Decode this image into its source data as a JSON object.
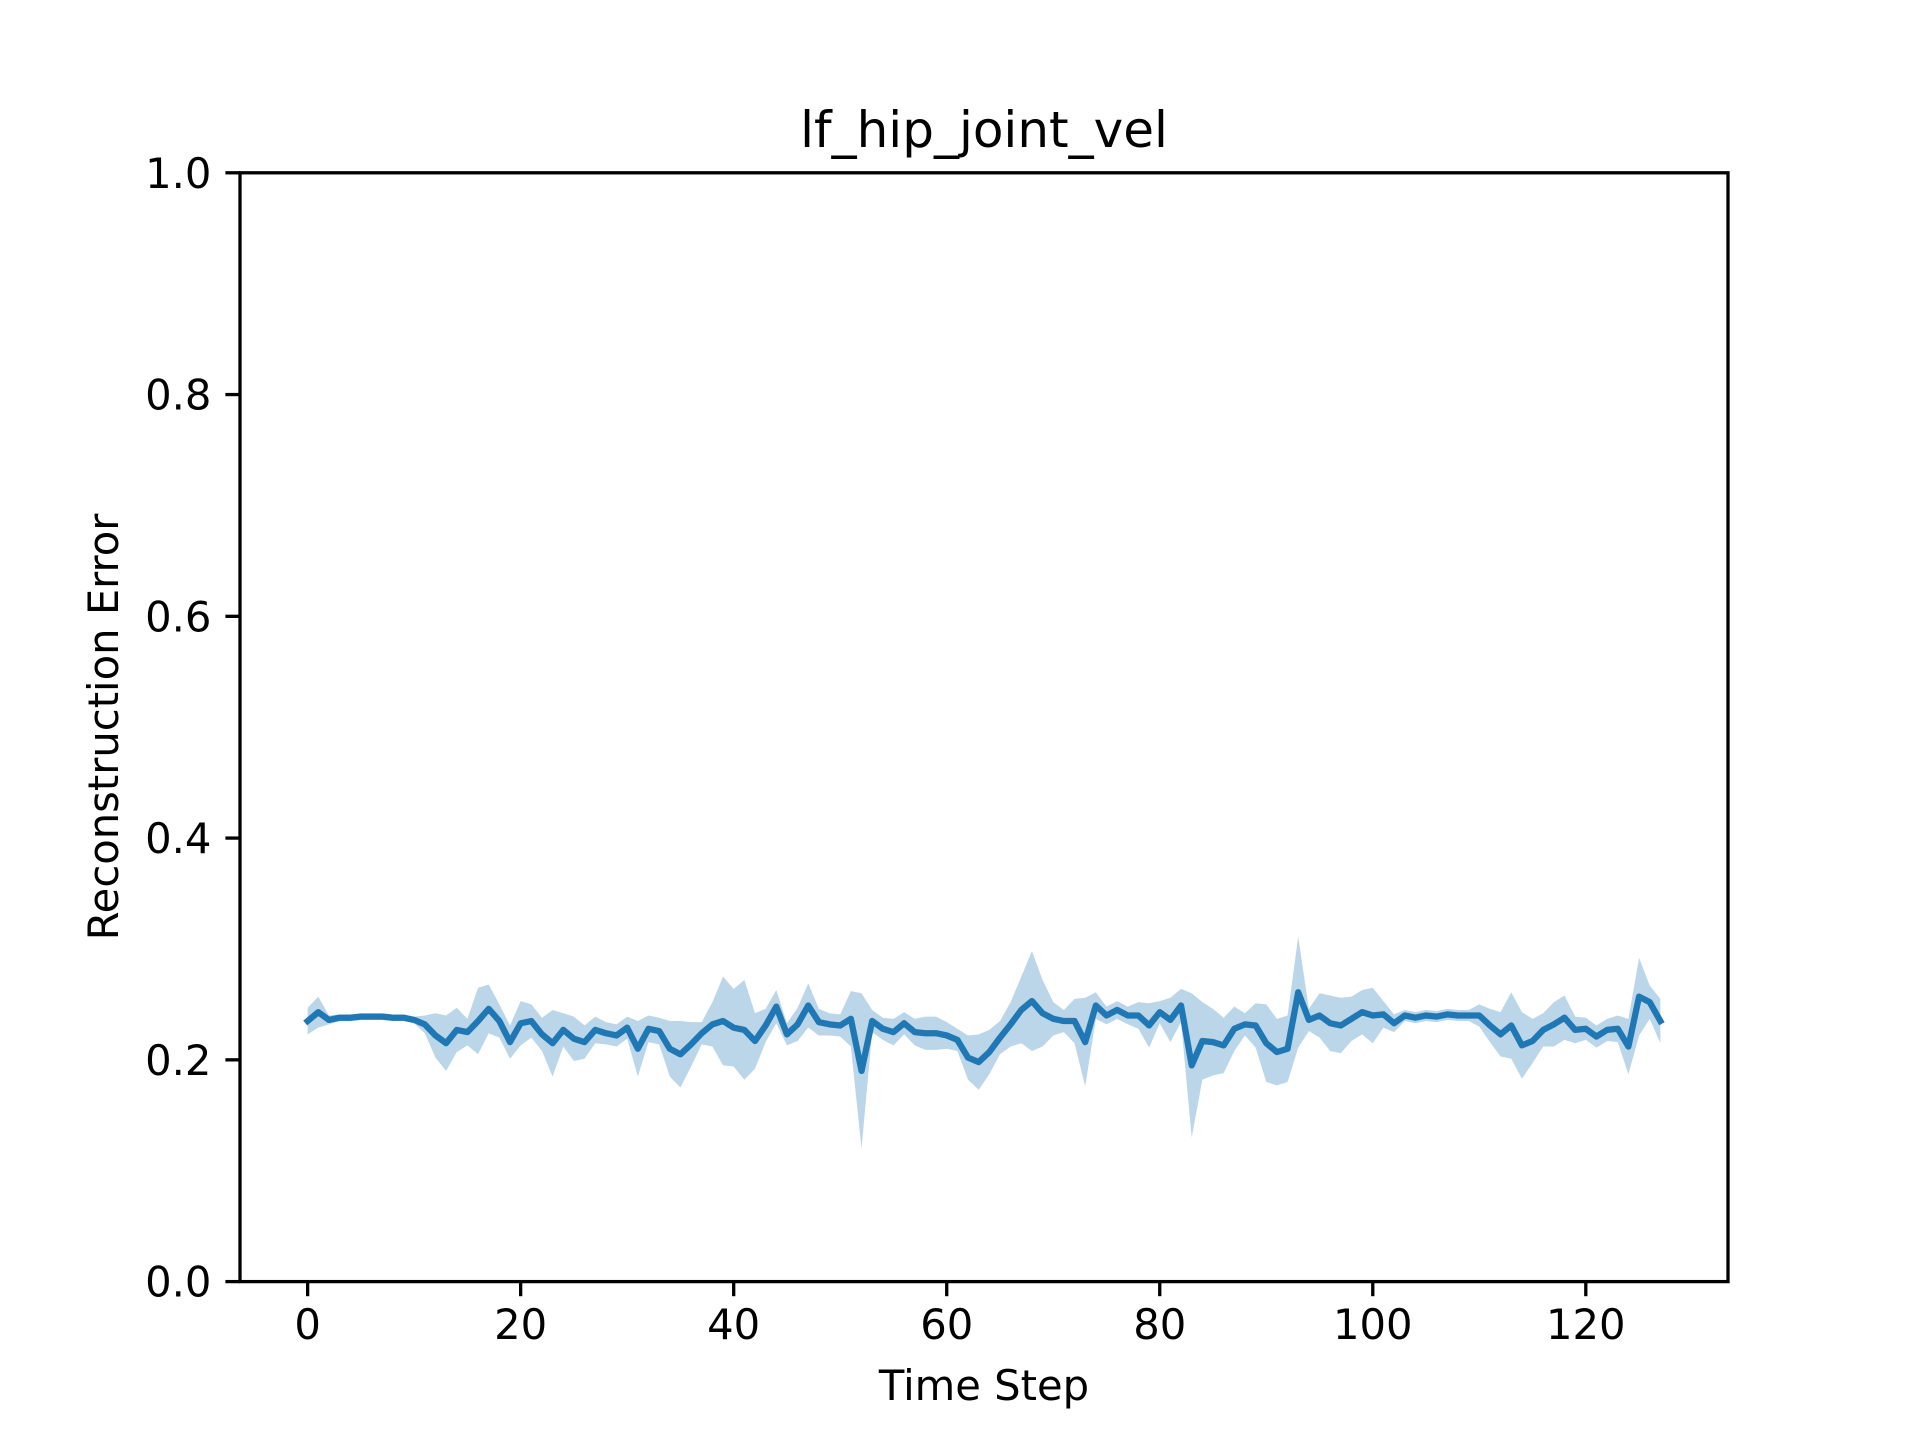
{
  "chart_data": {
    "type": "line",
    "title": "lf_hip_joint_vel",
    "xlabel": "Time Step",
    "ylabel": "Reconstruction Error",
    "x": [
      0,
      1,
      2,
      3,
      4,
      5,
      6,
      7,
      8,
      9,
      10,
      11,
      12,
      13,
      14,
      15,
      16,
      17,
      18,
      19,
      20,
      21,
      22,
      23,
      24,
      25,
      26,
      27,
      28,
      29,
      30,
      31,
      32,
      33,
      34,
      35,
      36,
      37,
      38,
      39,
      40,
      41,
      42,
      43,
      44,
      45,
      46,
      47,
      48,
      49,
      50,
      51,
      52,
      53,
      54,
      55,
      56,
      57,
      58,
      59,
      60,
      61,
      62,
      63,
      64,
      65,
      66,
      67,
      68,
      69,
      70,
      71,
      72,
      73,
      74,
      75,
      76,
      77,
      78,
      79,
      80,
      81,
      82,
      83,
      84,
      85,
      86,
      87,
      88,
      89,
      90,
      91,
      92,
      93,
      94,
      95,
      96,
      97,
      98,
      99,
      100,
      101,
      102,
      103,
      104,
      105,
      106,
      107,
      108,
      109,
      110,
      111,
      112,
      113,
      114,
      115,
      116,
      117,
      118,
      119,
      120,
      121,
      122,
      123,
      124,
      125,
      126,
      127
    ],
    "series": [
      {
        "color": "#1f77b4",
        "values": [
          0.235,
          0.243,
          0.236,
          0.238,
          0.238,
          0.239,
          0.239,
          0.239,
          0.238,
          0.238,
          0.236,
          0.232,
          0.222,
          0.215,
          0.227,
          0.225,
          0.235,
          0.246,
          0.235,
          0.216,
          0.233,
          0.235,
          0.223,
          0.215,
          0.227,
          0.219,
          0.216,
          0.227,
          0.224,
          0.222,
          0.229,
          0.21,
          0.228,
          0.226,
          0.21,
          0.205,
          0.214,
          0.224,
          0.232,
          0.235,
          0.229,
          0.227,
          0.217,
          0.231,
          0.248,
          0.223,
          0.232,
          0.249,
          0.234,
          0.232,
          0.231,
          0.237,
          0.19,
          0.235,
          0.228,
          0.225,
          0.233,
          0.225,
          0.224,
          0.224,
          0.222,
          0.218,
          0.202,
          0.198,
          0.207,
          0.22,
          0.232,
          0.245,
          0.253,
          0.242,
          0.237,
          0.235,
          0.235,
          0.216,
          0.249,
          0.24,
          0.245,
          0.24,
          0.24,
          0.231,
          0.243,
          0.236,
          0.249,
          0.195,
          0.217,
          0.216,
          0.213,
          0.228,
          0.232,
          0.231,
          0.215,
          0.207,
          0.21,
          0.261,
          0.236,
          0.24,
          0.233,
          0.231,
          0.237,
          0.243,
          0.24,
          0.241,
          0.233,
          0.24,
          0.238,
          0.24,
          0.239,
          0.241,
          0.24,
          0.24,
          0.24,
          0.231,
          0.223,
          0.231,
          0.213,
          0.217,
          0.227,
          0.232,
          0.238,
          0.227,
          0.228,
          0.221,
          0.227,
          0.228,
          0.212,
          0.257,
          0.252,
          0.235
        ]
      }
    ],
    "band": {
      "color": "#1f77b4",
      "opacity": 0.3,
      "lower": [
        0.223,
        0.229,
        0.232,
        0.235,
        0.235,
        0.236,
        0.236,
        0.236,
        0.235,
        0.235,
        0.233,
        0.224,
        0.202,
        0.19,
        0.207,
        0.213,
        0.205,
        0.224,
        0.22,
        0.201,
        0.213,
        0.22,
        0.208,
        0.185,
        0.212,
        0.199,
        0.201,
        0.215,
        0.214,
        0.212,
        0.219,
        0.185,
        0.216,
        0.214,
        0.185,
        0.175,
        0.194,
        0.214,
        0.212,
        0.195,
        0.194,
        0.182,
        0.192,
        0.216,
        0.233,
        0.213,
        0.217,
        0.229,
        0.222,
        0.222,
        0.221,
        0.212,
        0.12,
        0.225,
        0.218,
        0.213,
        0.223,
        0.213,
        0.209,
        0.209,
        0.21,
        0.208,
        0.182,
        0.173,
        0.187,
        0.205,
        0.212,
        0.215,
        0.208,
        0.212,
        0.222,
        0.225,
        0.215,
        0.176,
        0.237,
        0.232,
        0.237,
        0.232,
        0.228,
        0.211,
        0.233,
        0.216,
        0.234,
        0.13,
        0.182,
        0.186,
        0.188,
        0.208,
        0.222,
        0.211,
        0.18,
        0.177,
        0.18,
        0.211,
        0.226,
        0.22,
        0.208,
        0.206,
        0.217,
        0.223,
        0.215,
        0.229,
        0.225,
        0.235,
        0.233,
        0.235,
        0.234,
        0.236,
        0.235,
        0.235,
        0.23,
        0.216,
        0.203,
        0.201,
        0.183,
        0.197,
        0.212,
        0.212,
        0.218,
        0.215,
        0.218,
        0.211,
        0.217,
        0.216,
        0.187,
        0.222,
        0.237,
        0.215
      ],
      "upper": [
        0.247,
        0.257,
        0.24,
        0.241,
        0.241,
        0.242,
        0.242,
        0.242,
        0.241,
        0.241,
        0.239,
        0.24,
        0.242,
        0.24,
        0.247,
        0.237,
        0.265,
        0.268,
        0.25,
        0.231,
        0.253,
        0.25,
        0.238,
        0.245,
        0.242,
        0.239,
        0.231,
        0.239,
        0.234,
        0.232,
        0.239,
        0.235,
        0.24,
        0.238,
        0.235,
        0.235,
        0.234,
        0.234,
        0.252,
        0.275,
        0.264,
        0.272,
        0.242,
        0.246,
        0.263,
        0.233,
        0.247,
        0.269,
        0.246,
        0.242,
        0.241,
        0.262,
        0.26,
        0.245,
        0.238,
        0.237,
        0.243,
        0.237,
        0.239,
        0.239,
        0.234,
        0.228,
        0.222,
        0.223,
        0.227,
        0.235,
        0.252,
        0.275,
        0.298,
        0.272,
        0.252,
        0.245,
        0.255,
        0.256,
        0.261,
        0.248,
        0.253,
        0.248,
        0.252,
        0.251,
        0.253,
        0.256,
        0.264,
        0.26,
        0.252,
        0.246,
        0.238,
        0.248,
        0.242,
        0.251,
        0.25,
        0.237,
        0.24,
        0.311,
        0.246,
        0.26,
        0.258,
        0.256,
        0.257,
        0.263,
        0.265,
        0.253,
        0.241,
        0.245,
        0.243,
        0.245,
        0.244,
        0.246,
        0.245,
        0.245,
        0.25,
        0.246,
        0.243,
        0.261,
        0.243,
        0.237,
        0.242,
        0.252,
        0.258,
        0.239,
        0.238,
        0.231,
        0.237,
        0.24,
        0.237,
        0.292,
        0.267,
        0.255
      ]
    },
    "xlim": [
      -6.35,
      133.35
    ],
    "ylim": [
      0,
      1
    ],
    "xticks": [
      0,
      20,
      40,
      60,
      80,
      100,
      120
    ],
    "yticks": [
      {
        "value": 0,
        "label": "0.0"
      },
      {
        "value": 0.2,
        "label": "0.2"
      },
      {
        "value": 0.4,
        "label": "0.4"
      },
      {
        "value": 0.6,
        "label": "0.6"
      },
      {
        "value": 0.8,
        "label": "0.8"
      },
      {
        "value": 1,
        "label": "1.0"
      }
    ],
    "grid": false
  }
}
